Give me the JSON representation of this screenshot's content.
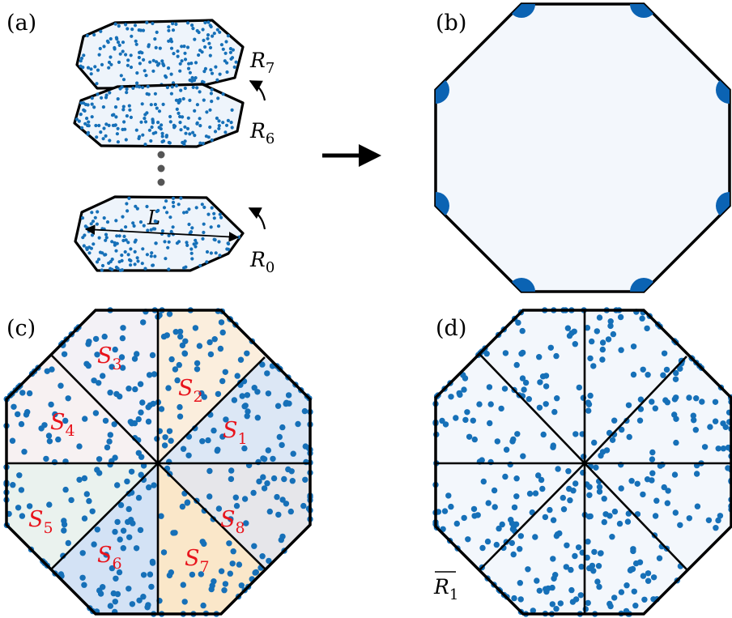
{
  "panels": {
    "a": "(a)",
    "b": "(b)",
    "c": "(c)",
    "d": "(d)"
  },
  "panel_a": {
    "layers": [
      {
        "name": "R",
        "index": "7"
      },
      {
        "name": "R",
        "index": "6"
      },
      {
        "name": "R",
        "index": "0"
      }
    ],
    "length_label": "L"
  },
  "panel_c": {
    "sectors": [
      {
        "name": "S",
        "index": "1"
      },
      {
        "name": "S",
        "index": "2"
      },
      {
        "name": "S",
        "index": "3"
      },
      {
        "name": "S",
        "index": "4"
      },
      {
        "name": "S",
        "index": "5"
      },
      {
        "name": "S",
        "index": "6"
      },
      {
        "name": "S",
        "index": "7"
      },
      {
        "name": "S",
        "index": "8"
      }
    ]
  },
  "panel_d": {
    "label_name": "R",
    "label_index": "1"
  },
  "colors": {
    "dot": "#1670b8",
    "outline": "#000000",
    "fill": "#eef4fb",
    "sector_label": "#e8141c",
    "sector_fills": [
      "#dce7f5",
      "#fbeedd",
      "#f3f1f6",
      "#f7f1f2",
      "#eaf2ee",
      "#d3e2f5",
      "#fae7c9",
      "#e6e6ea"
    ]
  }
}
